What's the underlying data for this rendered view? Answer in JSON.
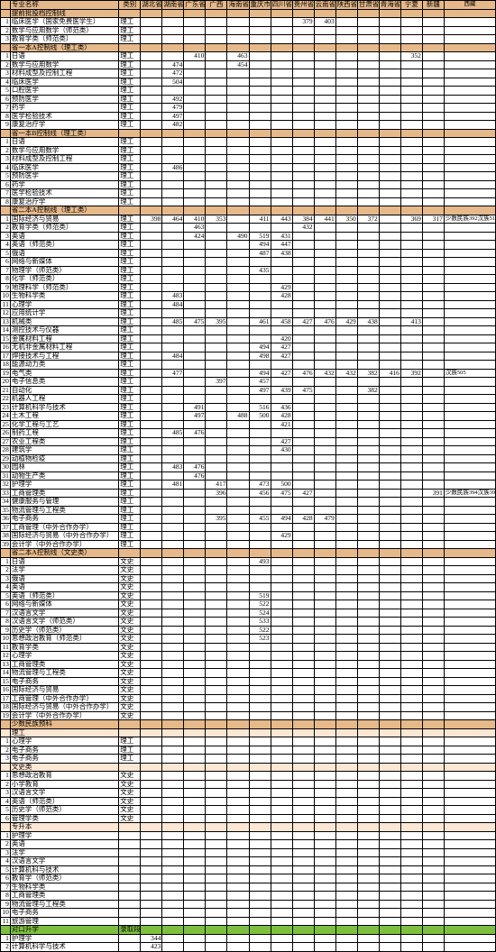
{
  "columns": [
    "",
    "专业名称",
    "类别",
    "湖北省",
    "湖南省",
    "广东省",
    "广西",
    "海南省",
    "重庆市",
    "四川省",
    "贵州省",
    "云南省",
    "陕西省",
    "甘肃省",
    "青海省",
    "宁夏",
    "新疆",
    "西藏",
    ""
  ],
  "sections": [
    {
      "title": "提前批投档控制线",
      "rows": [
        {
          "n": 1,
          "name": "临床医学（国家免费医学生）",
          "cat": "理工",
          "v": {
            "10": "379",
            "11": "403"
          }
        },
        {
          "n": 2,
          "name": "数学与应用数学（师范类）",
          "cat": "理工"
        },
        {
          "n": 3,
          "name": "教育学类（师范类）",
          "cat": "理工"
        }
      ]
    },
    {
      "title": "省一本A控制线（理工类）",
      "rows": [
        {
          "n": 1,
          "name": "日语",
          "cat": "理工",
          "v": {
            "5": "410",
            "7": "463",
            "15": "352"
          }
        },
        {
          "n": 2,
          "name": "数学与应用数学",
          "cat": "理工",
          "v": {
            "4": "474",
            "7": "454"
          }
        },
        {
          "n": 3,
          "name": "材料成型及控制工程",
          "cat": "理工",
          "v": {
            "4": "472"
          }
        },
        {
          "n": 4,
          "name": "临床医学",
          "cat": "理工",
          "v": {
            "4": "504"
          }
        },
        {
          "n": 5,
          "name": "口腔医学",
          "cat": "理工"
        },
        {
          "n": 6,
          "name": "预防医学",
          "cat": "理工",
          "v": {
            "4": "492"
          }
        },
        {
          "n": 7,
          "name": "药学",
          "cat": "理工",
          "v": {
            "4": "479"
          }
        },
        {
          "n": 8,
          "name": "医学检验技术",
          "cat": "理工",
          "v": {
            "4": "497"
          }
        },
        {
          "n": 9,
          "name": "康复治疗学",
          "cat": "理工",
          "v": {
            "4": "482"
          }
        }
      ]
    },
    {
      "title": "省一本B控制线（理工类）",
      "rows": [
        {
          "n": 1,
          "name": "日语",
          "cat": "理工"
        },
        {
          "n": 2,
          "name": "数学与应用数学",
          "cat": "理工"
        },
        {
          "n": 3,
          "name": "材料成型及控制工程",
          "cat": "理工"
        },
        {
          "n": 4,
          "name": "临床医学",
          "cat": "理工",
          "v": {
            "4": "486"
          }
        },
        {
          "n": 5,
          "name": "预防医学",
          "cat": "理工"
        },
        {
          "n": 6,
          "name": "药学",
          "cat": "理工"
        },
        {
          "n": 7,
          "name": "医学检验技术",
          "cat": "理工"
        },
        {
          "n": 8,
          "name": "康复治疗学",
          "cat": "理工"
        }
      ]
    },
    {
      "title": "省二本A控制线（理工类）",
      "rows": [
        {
          "n": 1,
          "name": "国际经济与贸易",
          "cat": "理工",
          "v": {
            "3": "398",
            "4": "464",
            "5": "410",
            "6": "353",
            "8": "411",
            "9": "443",
            "10": "384",
            "11": "441",
            "12": "350",
            "13": "372",
            "15": "369",
            "16": "317",
            "note": "少数民族392汉族510"
          }
        },
        {
          "n": 2,
          "name": "教育学类（师范类）",
          "cat": "理工",
          "v": {
            "5": "463",
            "10": "432"
          }
        },
        {
          "n": 3,
          "name": "英语",
          "cat": "理工",
          "v": {
            "5": "424",
            "7": "490",
            "8": "519",
            "9": "431"
          }
        },
        {
          "n": 4,
          "name": "英语（师范类）",
          "cat": "理工",
          "v": {
            "8": "494",
            "9": "447"
          }
        },
        {
          "n": 5,
          "name": "俄语",
          "cat": "理工",
          "v": {
            "8": "487",
            "9": "438"
          }
        },
        {
          "n": 6,
          "name": "网络与新媒体",
          "cat": "理工"
        },
        {
          "n": 7,
          "name": "物理学（师范类）",
          "cat": "理工",
          "v": {
            "8": "435"
          }
        },
        {
          "n": 8,
          "name": "化学（师范类）",
          "cat": "理工"
        },
        {
          "n": 9,
          "name": "地理科学（师范类）",
          "cat": "理工",
          "v": {
            "9": "429"
          }
        },
        {
          "n": 10,
          "name": "生物科学类",
          "cat": "理工",
          "v": {
            "4": "483",
            "9": "428"
          }
        },
        {
          "n": 11,
          "name": "心理学",
          "cat": "理工",
          "v": {
            "4": "484"
          }
        },
        {
          "n": 12,
          "name": "应用统计学",
          "cat": "理工"
        },
        {
          "n": 13,
          "name": "机械类",
          "cat": "理工",
          "v": {
            "4": "485",
            "5": "475",
            "6": "395",
            "8": "461",
            "9": "458",
            "10": "427",
            "11": "476",
            "12": "429",
            "13": "438",
            "15": "413"
          }
        },
        {
          "n": 14,
          "name": "测控技术与仪器",
          "cat": "理工"
        },
        {
          "n": 15,
          "name": "金属材料工程",
          "cat": "理工",
          "v": {
            "9": "420"
          }
        },
        {
          "n": 16,
          "name": "无机非金属材料工程",
          "cat": "理工",
          "v": {
            "8": "494",
            "9": "427"
          }
        },
        {
          "n": 17,
          "name": "焊接技术与工程",
          "cat": "理工",
          "v": {
            "4": "484",
            "8": "498",
            "9": "427"
          }
        },
        {
          "n": 18,
          "name": "能源动力类",
          "cat": "理工"
        },
        {
          "n": 19,
          "name": "电气类",
          "cat": "理工",
          "v": {
            "4": "477",
            "8": "494",
            "9": "427",
            "10": "476",
            "11": "432",
            "12": "432",
            "13": "382",
            "14": "416",
            "15": "392",
            "note": "汉族505"
          }
        },
        {
          "n": 20,
          "name": "电子信息类",
          "cat": "理工",
          "v": {
            "6": "397",
            "8": "457"
          }
        },
        {
          "n": 21,
          "name": "自动化",
          "cat": "理工",
          "v": {
            "8": "497",
            "9": "439",
            "10": "475",
            "13": "382"
          }
        },
        {
          "n": 22,
          "name": "机器人工程",
          "cat": "理工"
        },
        {
          "n": 23,
          "name": "计算机科学与技术",
          "cat": "理工",
          "v": {
            "5": "491",
            "8": "516",
            "9": "436"
          }
        },
        {
          "n": 24,
          "name": "土木工程",
          "cat": "理工",
          "v": {
            "5": "497",
            "7": "488",
            "8": "500",
            "9": "428"
          }
        },
        {
          "n": 25,
          "name": "化学工程与工艺",
          "cat": "理工",
          "v": {
            "9": "421"
          }
        },
        {
          "n": 26,
          "name": "制药工程",
          "cat": "理工",
          "v": {
            "4": "485",
            "5": "476"
          }
        },
        {
          "n": 27,
          "name": "农业工程类",
          "cat": "理工",
          "v": {
            "9": "427"
          }
        },
        {
          "n": 28,
          "name": "建筑学",
          "cat": "理工",
          "v": {
            "9": "430"
          }
        },
        {
          "n": 29,
          "name": "动植物检疫",
          "cat": "理工"
        },
        {
          "n": 30,
          "name": "园林",
          "cat": "理工",
          "v": {
            "4": "483",
            "5": "476"
          }
        },
        {
          "n": 31,
          "name": "动物生产类",
          "cat": "理工",
          "v": {
            "5": "476"
          }
        },
        {
          "n": 32,
          "name": "护理学",
          "cat": "理工",
          "v": {
            "4": "481",
            "6": "417",
            "8": "473",
            "9": "500"
          }
        },
        {
          "n": 33,
          "name": "工商管理类",
          "cat": "理工",
          "v": {
            "6": "396",
            "8": "456",
            "9": "475",
            "10": "427",
            "16": "391",
            "note": "少数民族394汉族394"
          }
        },
        {
          "n": 34,
          "name": "健康服务与管理",
          "cat": "理工"
        },
        {
          "n": 35,
          "name": "物流管理与工程类",
          "cat": "理工"
        },
        {
          "n": 36,
          "name": "电子商务",
          "cat": "理工",
          "v": {
            "6": "395",
            "8": "455",
            "9": "494",
            "10": "428",
            "11": "479"
          }
        },
        {
          "n": 37,
          "name": "工商管理（中外合作办学）",
          "cat": "理工"
        },
        {
          "n": 38,
          "name": "国际经济与贸易（中外合作办学）",
          "cat": "理工",
          "v": {
            "9": "429"
          }
        },
        {
          "n": 39,
          "name": "会计学（中外合作办学）",
          "cat": "理工"
        }
      ]
    },
    {
      "title": "省二本A控制线（文史类）",
      "rows": [
        {
          "n": 1,
          "name": "日语",
          "cat": "文史",
          "v": {
            "8": "493"
          }
        },
        {
          "n": 2,
          "name": "法学",
          "cat": "文史"
        },
        {
          "n": 3,
          "name": "俄语",
          "cat": "文史"
        },
        {
          "n": 4,
          "name": "英语",
          "cat": "文史"
        },
        {
          "n": 5,
          "name": "英语（师范类）",
          "cat": "文史",
          "v": {
            "8": "519"
          }
        },
        {
          "n": 6,
          "name": "网络与新媒体",
          "cat": "文史",
          "v": {
            "8": "522"
          }
        },
        {
          "n": 7,
          "name": "汉语言文学",
          "cat": "文史",
          "v": {
            "8": "524"
          }
        },
        {
          "n": 8,
          "name": "汉语言文学（师范类）",
          "cat": "文史",
          "v": {
            "8": "533"
          }
        },
        {
          "n": 9,
          "name": "历史学（师范类）",
          "cat": "文史",
          "v": {
            "8": "522"
          }
        },
        {
          "n": 10,
          "name": "思想政治教育（师范类）",
          "cat": "文史",
          "v": {
            "8": "523"
          }
        },
        {
          "n": 11,
          "name": "教育学类",
          "cat": "文史"
        },
        {
          "n": 12,
          "name": "心理学",
          "cat": "文史"
        },
        {
          "n": 13,
          "name": "工商管理类",
          "cat": "文史"
        },
        {
          "n": 14,
          "name": "物流管理与工程类",
          "cat": "文史"
        },
        {
          "n": 15,
          "name": "电子商务",
          "cat": "文史"
        },
        {
          "n": 16,
          "name": "国际经济与贸易",
          "cat": "文史"
        },
        {
          "n": 17,
          "name": "工商管理（中外合作办学）",
          "cat": "文史"
        },
        {
          "n": 18,
          "name": "国际经济与贸易（中外合作办学）",
          "cat": "文史"
        },
        {
          "n": 19,
          "name": "会计学（中外合作办学）",
          "cat": "文史"
        }
      ]
    },
    {
      "title": "少数民族预科",
      "subs": [
        {
          "label": "理工",
          "rows": [
            {
              "n": 1,
              "name": "心理学",
              "cat": "理工"
            },
            {
              "n": 2,
              "name": "电子商务",
              "cat": "理工"
            },
            {
              "n": 3,
              "name": "电子商务",
              "cat": "理工"
            }
          ]
        },
        {
          "label": "文史类",
          "rows": [
            {
              "n": 1,
              "name": "思想政治教育",
              "cat": "文史"
            },
            {
              "n": 2,
              "name": "小学教育",
              "cat": "文史"
            },
            {
              "n": 3,
              "name": "汉语言文学",
              "cat": "文史"
            },
            {
              "n": 4,
              "name": "英语（师范类）",
              "cat": "文史"
            },
            {
              "n": 5,
              "name": "历史学（师范类）",
              "cat": "文史"
            },
            {
              "n": 6,
              "name": "管理学类",
              "cat": "文史"
            }
          ]
        },
        {
          "label": "专升本",
          "rows": [
            {
              "n": 1,
              "name": "护理学"
            },
            {
              "n": 2,
              "name": "英语"
            },
            {
              "n": 3,
              "name": "法学"
            },
            {
              "n": 4,
              "name": "汉语言文学"
            },
            {
              "n": 5,
              "name": "计算机科与技术"
            },
            {
              "n": 6,
              "name": "教育学（师范类）"
            },
            {
              "n": 7,
              "name": "生物科学类"
            },
            {
              "n": 8,
              "name": "工商管理类"
            },
            {
              "n": 9,
              "name": "物流管理与工程类"
            },
            {
              "n": 10,
              "name": "电子商务"
            },
            {
              "n": 11,
              "name": "旅游管理"
            }
          ]
        }
      ]
    },
    {
      "title": "对口升学",
      "green": true,
      "col2": "录取段",
      "rows": [
        {
          "n": 1,
          "name": "护理学",
          "val": "344"
        },
        {
          "n": 2,
          "name": "计算机科学与技术",
          "val": "423"
        }
      ]
    }
  ]
}
